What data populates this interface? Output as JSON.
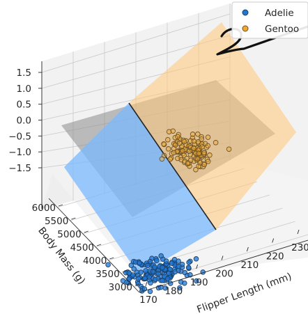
{
  "chart_data": {
    "type": "scatter3d",
    "title": "",
    "xlabel": "Flipper Length (mm)",
    "ylabel": "Body Mass (g)",
    "zlabel": "",
    "x_ticks": [
      "170",
      "180",
      "190",
      "200",
      "210",
      "220",
      "230"
    ],
    "y_ticks": [
      "3000",
      "3500",
      "4000",
      "4500",
      "5000",
      "5500",
      "6000"
    ],
    "z_ticks": [
      "−1.5",
      "−1.0",
      "−0.5",
      "0.0",
      "0.5",
      "1.0",
      "1.5"
    ],
    "xlim": [
      170,
      235
    ],
    "ylim": [
      2700,
      6300
    ],
    "zlim": [
      -1.8,
      1.9
    ],
    "grid": true,
    "legend_position": "top-right",
    "series": [
      {
        "name": "Adelie",
        "color": "#1f77d4",
        "flipper_range": [
          172,
          210
        ],
        "mass_range": [
          2850,
          4775
        ],
        "z_value": -1.0,
        "count": 151
      },
      {
        "name": "Gentoo",
        "color": "#f0a830",
        "flipper_range": [
          203,
          231
        ],
        "mass_range": [
          3950,
          6300
        ],
        "z_value": 1.0,
        "count": 123
      }
    ],
    "surfaces": [
      {
        "kind": "decision plane",
        "color": "#ffc978",
        "side": "Gentoo"
      },
      {
        "kind": "decision plane",
        "color": "#7ab8ff",
        "side": "Adelie"
      },
      {
        "kind": "zero plane",
        "color": "#8c8c8c"
      }
    ]
  }
}
